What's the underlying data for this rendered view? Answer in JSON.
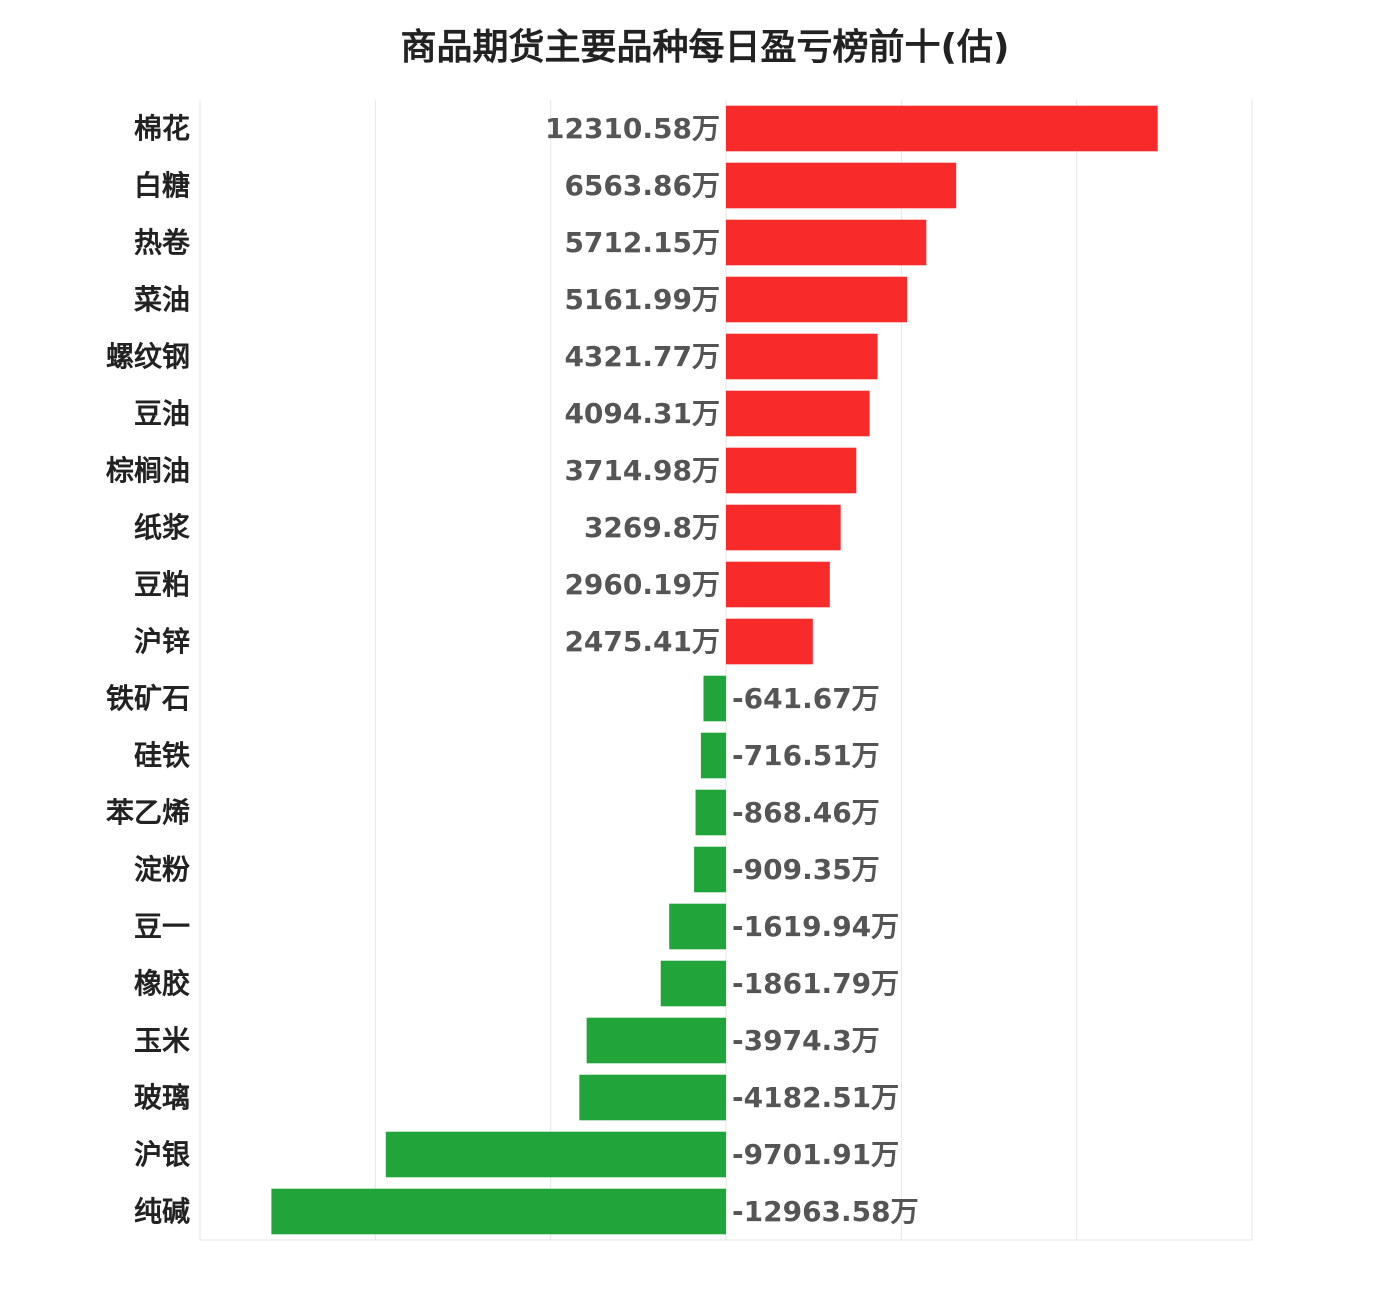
{
  "chart_data": {
    "type": "bar",
    "orientation": "horizontal",
    "title": "商品期货主要品种每日盈亏榜前十(估)",
    "unit": "万",
    "categories": [
      "棉花",
      "白糖",
      "热卷",
      "菜油",
      "螺纹钢",
      "豆油",
      "棕榈油",
      "纸浆",
      "豆粕",
      "沪锌",
      "铁矿石",
      "硅铁",
      "苯乙烯",
      "淀粉",
      "豆一",
      "橡胶",
      "玉米",
      "玻璃",
      "沪银",
      "纯碱"
    ],
    "values": [
      12310.58,
      6563.86,
      5712.15,
      5161.99,
      4321.77,
      4094.31,
      3714.98,
      3269.8,
      2960.19,
      2475.41,
      -641.67,
      -716.51,
      -868.46,
      -909.35,
      -1619.94,
      -1861.79,
      -3974.3,
      -4182.51,
      -9701.91,
      -12963.58
    ],
    "labels": [
      "12310.58万",
      "6563.86万",
      "5712.15万",
      "5161.99万",
      "4321.77万",
      "4094.31万",
      "3714.98万",
      "3269.8万",
      "2960.19万",
      "2475.41万",
      "-641.67万",
      "-716.51万",
      "-868.46万",
      "-909.35万",
      "-1619.94万",
      "-1861.79万",
      "-3974.3万",
      "-4182.51万",
      "-9701.91万",
      "-12963.58万"
    ],
    "xlim": [
      -15000,
      15000
    ],
    "grid": true,
    "colors": {
      "positive": "#f92a2a",
      "negative": "#21a53a",
      "grid": "#e6e6e6"
    }
  }
}
